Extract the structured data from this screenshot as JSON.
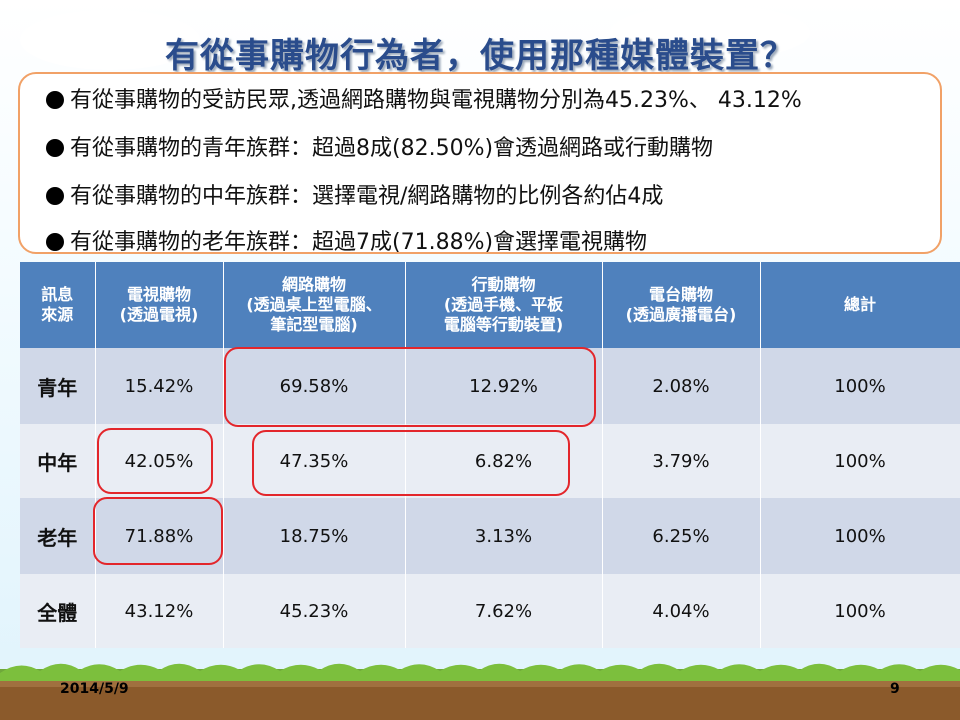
{
  "slide": {
    "title": "有從事購物行為者，使用那種媒體裝置？",
    "bullets": [
      "有從事購物的受訪民眾,透過網路購物與電視購物分別為45.23%、 43.12%",
      "有從事購物的青年族群：超過8成(82.50%)會透過網路或行動購物",
      "有從事購物的中年族群：選擇電視/網路購物的比例各約佔4成",
      "有從事購物的老年族群：超過7成(71.88%)會選擇電視購物"
    ],
    "table": {
      "headers": [
        {
          "line1": "訊息",
          "line2": "來源",
          "line3": ""
        },
        {
          "line1": "電視購物",
          "line2": "(透過電視)",
          "line3": ""
        },
        {
          "line1": "網路購物",
          "line2": "(透過桌上型電腦、",
          "line3": "筆記型電腦)"
        },
        {
          "line1": "行動購物",
          "line2": "(透過手機、平板",
          "line3": "電腦等行動裝置)"
        },
        {
          "line1": "電台購物",
          "line2": "(透過廣播電台)",
          "line3": ""
        },
        {
          "line1": "總計",
          "line2": "",
          "line3": ""
        }
      ],
      "rows": [
        {
          "label": "青年",
          "values": [
            "15.42%",
            "69.58%",
            "12.92%",
            "2.08%",
            "100%"
          ]
        },
        {
          "label": "中年",
          "values": [
            "42.05%",
            "47.35%",
            "6.82%",
            "3.79%",
            "100%"
          ]
        },
        {
          "label": "老年",
          "values": [
            "71.88%",
            "18.75%",
            "3.13%",
            "6.25%",
            "100%"
          ]
        },
        {
          "label": "全體",
          "values": [
            "43.12%",
            "45.23%",
            "7.62%",
            "4.04%",
            "100%"
          ]
        }
      ]
    },
    "footer": {
      "date": "2014/5/9",
      "page": "9"
    },
    "colors": {
      "header": "#4f81bd",
      "row_dark": "#d0d8e8",
      "row_light": "#e9edf4",
      "highlight": "#e3262b",
      "box_border": "#f1a167",
      "title": "#2a4c8c"
    }
  }
}
